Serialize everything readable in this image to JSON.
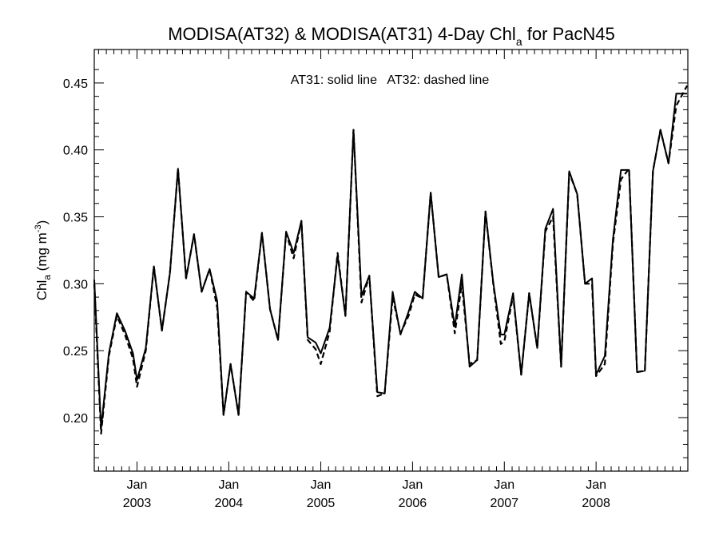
{
  "chart_data": {
    "type": "line",
    "title": {
      "main": "MODISA(AT32) & MODISA(AT31) 4-Day Chl",
      "sub": "a",
      "suffix": " for PacN45"
    },
    "ylabel": {
      "main": "Chl",
      "sub": "a",
      "mid": " (mg m",
      "sup": "-3",
      "end": ")"
    },
    "annotation": "AT31: solid line   AT32: dashed line",
    "ylim": [
      0.16,
      0.475
    ],
    "y_ticks": [
      {
        "value": 0.2,
        "label": "0.20"
      },
      {
        "value": 0.25,
        "label": "0.25"
      },
      {
        "value": 0.3,
        "label": "0.30"
      },
      {
        "value": 0.35,
        "label": "0.35"
      },
      {
        "value": 0.4,
        "label": "0.40"
      },
      {
        "value": 0.45,
        "label": "0.45"
      }
    ],
    "xlim": [
      "2002-07-15",
      "2008-12-31"
    ],
    "x_ticks": [
      {
        "date": "2003-01-01",
        "month": "Jan",
        "year": "2003"
      },
      {
        "date": "2004-01-01",
        "month": "Jan",
        "year": "2004"
      },
      {
        "date": "2005-01-01",
        "month": "Jan",
        "year": "2005"
      },
      {
        "date": "2006-01-01",
        "month": "Jan",
        "year": "2006"
      },
      {
        "date": "2007-01-01",
        "month": "Jan",
        "year": "2007"
      },
      {
        "date": "2008-01-01",
        "month": "Jan",
        "year": "2008"
      }
    ],
    "series": [
      {
        "name": "AT31",
        "style": "solid",
        "color": "#000000",
        "x": [
          "2002-07-15",
          "2002-08-11",
          "2002-09-11",
          "2002-10-13",
          "2002-11-14",
          "2002-12-16",
          "2003-01-01",
          "2003-02-05",
          "2003-03-09",
          "2003-04-10",
          "2003-05-12",
          "2003-06-13",
          "2003-07-15",
          "2003-08-16",
          "2003-09-15",
          "2003-10-17",
          "2003-11-16",
          "2003-12-11",
          "2004-01-08",
          "2004-02-09",
          "2004-03-10",
          "2004-04-11",
          "2004-05-12",
          "2004-06-13",
          "2004-07-15",
          "2004-08-16",
          "2004-09-15",
          "2004-10-16",
          "2004-11-10",
          "2004-12-12",
          "2005-01-01",
          "2005-02-05",
          "2005-03-09",
          "2005-04-09",
          "2005-05-11",
          "2005-06-12",
          "2005-07-13",
          "2005-08-14",
          "2005-09-12",
          "2005-10-14",
          "2005-11-14",
          "2005-12-16",
          "2006-01-10",
          "2006-02-10",
          "2006-03-14",
          "2006-04-15",
          "2006-05-17",
          "2006-06-18",
          "2006-07-16",
          "2006-08-16",
          "2006-09-15",
          "2006-10-18",
          "2006-11-18",
          "2006-12-18",
          "2007-01-01",
          "2007-02-05",
          "2007-03-09",
          "2007-04-10",
          "2007-05-12",
          "2007-06-13",
          "2007-07-14",
          "2007-08-15",
          "2007-09-16",
          "2007-10-18",
          "2007-11-18",
          "2007-12-16",
          "2008-01-01",
          "2008-02-05",
          "2008-03-08",
          "2008-04-09",
          "2008-05-11",
          "2008-06-12",
          "2008-07-13",
          "2008-08-14",
          "2008-09-13",
          "2008-10-15",
          "2008-11-15",
          "2008-12-28"
        ],
        "y": [
          0.303,
          0.192,
          0.248,
          0.278,
          0.265,
          0.248,
          0.228,
          0.252,
          0.313,
          0.265,
          0.308,
          0.386,
          0.304,
          0.337,
          0.294,
          0.311,
          0.287,
          0.202,
          0.24,
          0.202,
          0.294,
          0.289,
          0.338,
          0.281,
          0.258,
          0.339,
          0.323,
          0.347,
          0.26,
          0.256,
          0.248,
          0.267,
          0.321,
          0.276,
          0.415,
          0.291,
          0.306,
          0.219,
          0.218,
          0.294,
          0.262,
          0.279,
          0.294,
          0.289,
          0.368,
          0.305,
          0.307,
          0.268,
          0.307,
          0.238,
          0.243,
          0.354,
          0.301,
          0.262,
          0.262,
          0.293,
          0.232,
          0.293,
          0.252,
          0.341,
          0.356,
          0.238,
          0.384,
          0.367,
          0.3,
          0.304,
          0.232,
          0.246,
          0.333,
          0.385,
          0.385,
          0.234,
          0.235,
          0.384,
          0.415,
          0.39,
          0.442,
          0.442
        ]
      },
      {
        "name": "AT32",
        "style": "dashed",
        "color": "#000000",
        "x": [
          "2002-07-15",
          "2002-08-11",
          "2002-09-11",
          "2002-10-13",
          "2002-11-14",
          "2002-12-16",
          "2003-01-01",
          "2003-02-05",
          "2003-03-09",
          "2003-04-10",
          "2003-05-12",
          "2003-06-13",
          "2003-07-15",
          "2003-08-16",
          "2003-09-15",
          "2003-10-17",
          "2003-11-16",
          "2003-12-11",
          "2004-01-08",
          "2004-02-09",
          "2004-03-10",
          "2004-04-11",
          "2004-05-12",
          "2004-06-13",
          "2004-07-15",
          "2004-08-16",
          "2004-09-15",
          "2004-10-16",
          "2004-11-10",
          "2004-12-12",
          "2005-01-01",
          "2005-02-05",
          "2005-03-09",
          "2005-04-09",
          "2005-05-11",
          "2005-06-12",
          "2005-07-13",
          "2005-08-14",
          "2005-09-12",
          "2005-10-14",
          "2005-11-14",
          "2005-12-16",
          "2006-01-10",
          "2006-02-10",
          "2006-03-14",
          "2006-04-15",
          "2006-05-17",
          "2006-06-18",
          "2006-07-16",
          "2006-08-16",
          "2006-09-15",
          "2006-10-18",
          "2006-11-18",
          "2006-12-18",
          "2007-01-01",
          "2007-02-05",
          "2007-03-09",
          "2007-04-10",
          "2007-05-12",
          "2007-06-13",
          "2007-07-14",
          "2007-08-15",
          "2007-09-16",
          "2007-10-18",
          "2007-11-18",
          "2007-12-16",
          "2008-01-01",
          "2008-02-05",
          "2008-03-08",
          "2008-04-09",
          "2008-05-11",
          "2008-06-12",
          "2008-07-13",
          "2008-08-14",
          "2008-09-13",
          "2008-10-15",
          "2008-11-15",
          "2008-12-28"
        ],
        "y": [
          0.3,
          0.188,
          0.246,
          0.276,
          0.262,
          0.244,
          0.223,
          0.25,
          0.313,
          0.265,
          0.308,
          0.386,
          0.304,
          0.337,
          0.294,
          0.311,
          0.282,
          0.202,
          0.24,
          0.202,
          0.294,
          0.287,
          0.338,
          0.281,
          0.258,
          0.338,
          0.319,
          0.347,
          0.258,
          0.251,
          0.24,
          0.264,
          0.323,
          0.276,
          0.415,
          0.286,
          0.306,
          0.216,
          0.218,
          0.29,
          0.263,
          0.276,
          0.292,
          0.289,
          0.368,
          0.305,
          0.307,
          0.263,
          0.3,
          0.24,
          0.243,
          0.354,
          0.3,
          0.255,
          0.257,
          0.291,
          0.232,
          0.293,
          0.252,
          0.339,
          0.35,
          0.238,
          0.383,
          0.367,
          0.3,
          0.3,
          0.231,
          0.24,
          0.33,
          0.378,
          0.386,
          0.234,
          0.235,
          0.384,
          0.415,
          0.39,
          0.433,
          0.448
        ]
      }
    ]
  }
}
